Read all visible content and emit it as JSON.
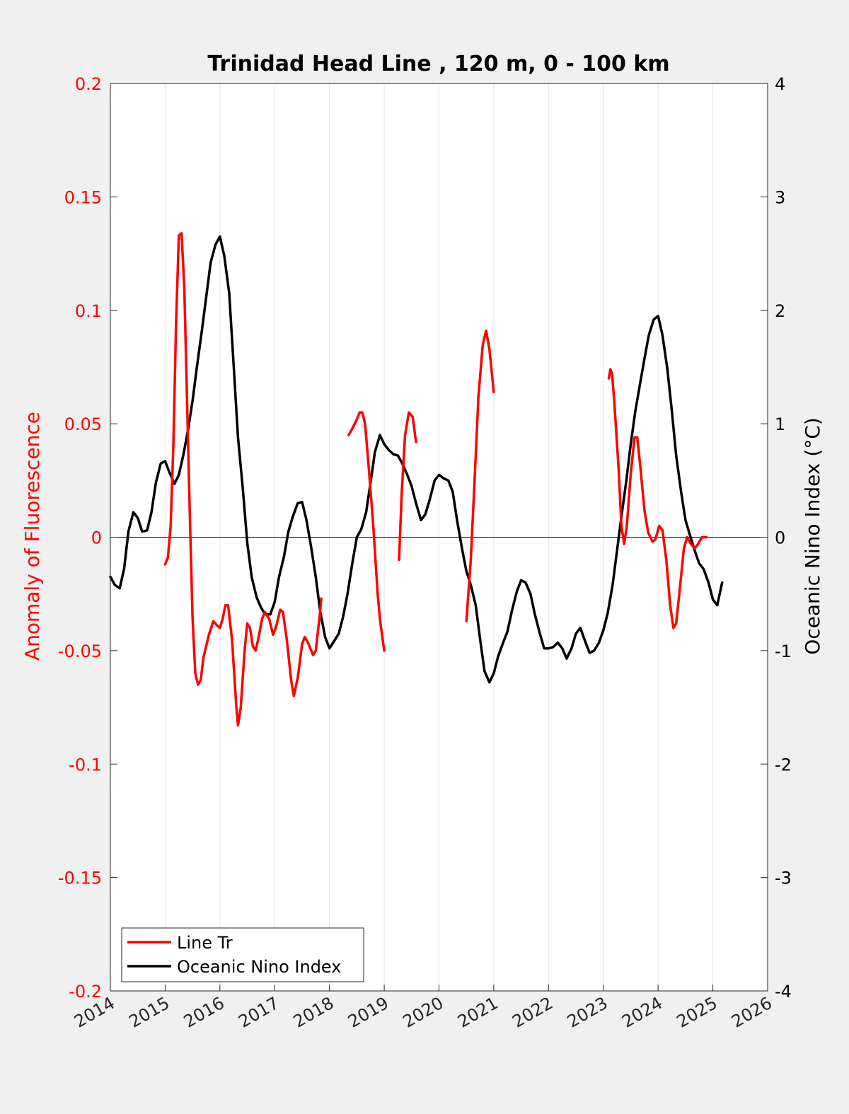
{
  "chart_data": {
    "type": "line",
    "title": "Trinidad Head Line , 120 m, 0 - 100 km",
    "xlabel": "",
    "ylabel_left": "Anomaly of Fluorescence",
    "ylabel_right": "Oceanic Nino Index (°C)",
    "xlim": [
      2014,
      2026
    ],
    "ylim_left": [
      -0.2,
      0.2
    ],
    "ylim_right": [
      -4,
      4
    ],
    "x_ticks": [
      "2014",
      "2015",
      "2016",
      "2017",
      "2018",
      "2019",
      "2020",
      "2021",
      "2022",
      "2023",
      "2024",
      "2025",
      "2026"
    ],
    "y_left_ticks": [
      "0.2",
      "0.15",
      "0.1",
      "0.05",
      "0",
      "-0.05",
      "-0.1",
      "-0.15",
      "-0.2"
    ],
    "y_right_ticks": [
      "4",
      "3",
      "2",
      "1",
      "0",
      "-1",
      "-2",
      "-3",
      "-4"
    ],
    "grid": "vertical",
    "zero_line": true,
    "legend_position": "bottom-left",
    "colors": {
      "line_tr": "#ff0000",
      "oni": "#000000"
    },
    "series": [
      {
        "name": "Line Tr",
        "axis": "left",
        "segments": [
          [
            [
              2015.0,
              -0.012
            ],
            [
              2015.05,
              -0.009
            ],
            [
              2015.1,
              0.005
            ],
            [
              2015.15,
              0.04
            ],
            [
              2015.2,
              0.095
            ],
            [
              2015.25,
              0.133
            ],
            [
              2015.3,
              0.134
            ],
            [
              2015.35,
              0.11
            ],
            [
              2015.4,
              0.06
            ],
            [
              2015.45,
              0.01
            ],
            [
              2015.5,
              -0.035
            ],
            [
              2015.55,
              -0.06
            ],
            [
              2015.6,
              -0.065
            ],
            [
              2015.65,
              -0.063
            ],
            [
              2015.7,
              -0.053
            ],
            [
              2015.8,
              -0.043
            ],
            [
              2015.88,
              -0.037
            ],
            [
              2015.95,
              -0.039
            ],
            [
              2016.0,
              -0.04
            ],
            [
              2016.05,
              -0.036
            ],
            [
              2016.1,
              -0.03
            ],
            [
              2016.15,
              -0.03
            ],
            [
              2016.22,
              -0.045
            ],
            [
              2016.3,
              -0.075
            ],
            [
              2016.33,
              -0.083
            ],
            [
              2016.38,
              -0.075
            ],
            [
              2016.45,
              -0.05
            ],
            [
              2016.5,
              -0.038
            ],
            [
              2016.55,
              -0.04
            ],
            [
              2016.6,
              -0.048
            ],
            [
              2016.65,
              -0.05
            ],
            [
              2016.7,
              -0.045
            ],
            [
              2016.77,
              -0.036
            ],
            [
              2016.82,
              -0.033
            ],
            [
              2016.9,
              -0.036
            ],
            [
              2016.97,
              -0.043
            ],
            [
              2017.02,
              -0.04
            ],
            [
              2017.1,
              -0.032
            ],
            [
              2017.15,
              -0.033
            ],
            [
              2017.22,
              -0.045
            ],
            [
              2017.3,
              -0.063
            ],
            [
              2017.35,
              -0.07
            ],
            [
              2017.42,
              -0.062
            ],
            [
              2017.5,
              -0.047
            ],
            [
              2017.55,
              -0.044
            ],
            [
              2017.62,
              -0.047
            ],
            [
              2017.7,
              -0.052
            ],
            [
              2017.75,
              -0.05
            ],
            [
              2017.82,
              -0.035
            ],
            [
              2017.85,
              -0.027
            ]
          ],
          [
            [
              2018.35,
              0.045
            ],
            [
              2018.42,
              0.048
            ],
            [
              2018.5,
              0.052
            ],
            [
              2018.55,
              0.055
            ],
            [
              2018.6,
              0.055
            ],
            [
              2018.65,
              0.05
            ],
            [
              2018.72,
              0.03
            ],
            [
              2018.8,
              0.005
            ],
            [
              2018.88,
              -0.025
            ],
            [
              2018.93,
              -0.038
            ],
            [
              2019.0,
              -0.05
            ]
          ],
          [
            [
              2019.27,
              -0.01
            ],
            [
              2019.32,
              0.02
            ],
            [
              2019.38,
              0.045
            ],
            [
              2019.45,
              0.055
            ],
            [
              2019.52,
              0.053
            ],
            [
              2019.58,
              0.042
            ]
          ],
          [
            [
              2020.5,
              -0.037
            ],
            [
              2020.58,
              -0.01
            ],
            [
              2020.65,
              0.025
            ],
            [
              2020.72,
              0.062
            ],
            [
              2020.8,
              0.085
            ],
            [
              2020.86,
              0.091
            ],
            [
              2020.92,
              0.083
            ],
            [
              2021.0,
              0.064
            ]
          ],
          [
            [
              2023.1,
              0.07
            ],
            [
              2023.13,
              0.074
            ],
            [
              2023.16,
              0.072
            ],
            [
              2023.2,
              0.06
            ],
            [
              2023.28,
              0.03
            ],
            [
              2023.33,
              0.005
            ],
            [
              2023.38,
              -0.003
            ],
            [
              2023.43,
              0.005
            ],
            [
              2023.5,
              0.028
            ],
            [
              2023.57,
              0.044
            ],
            [
              2023.62,
              0.044
            ],
            [
              2023.68,
              0.03
            ],
            [
              2023.75,
              0.012
            ],
            [
              2023.82,
              0.002
            ],
            [
              2023.9,
              -0.002
            ],
            [
              2023.95,
              -0.001
            ],
            [
              2024.02,
              0.005
            ],
            [
              2024.08,
              0.003
            ],
            [
              2024.15,
              -0.01
            ],
            [
              2024.22,
              -0.03
            ],
            [
              2024.28,
              -0.04
            ],
            [
              2024.33,
              -0.038
            ],
            [
              2024.4,
              -0.022
            ],
            [
              2024.47,
              -0.005
            ],
            [
              2024.53,
              0.0
            ],
            [
              2024.6,
              -0.003
            ],
            [
              2024.67,
              -0.005
            ],
            [
              2024.73,
              -0.003
            ],
            [
              2024.8,
              0.0
            ],
            [
              2024.88,
              0.0
            ]
          ]
        ]
      },
      {
        "name": "Oceanic Nino Index",
        "axis": "right",
        "segments": [
          [
            [
              2014.0,
              -0.35
            ],
            [
              2014.08,
              -0.42
            ],
            [
              2014.17,
              -0.45
            ],
            [
              2014.25,
              -0.28
            ],
            [
              2014.33,
              0.05
            ],
            [
              2014.42,
              0.22
            ],
            [
              2014.5,
              0.17
            ],
            [
              2014.58,
              0.05
            ],
            [
              2014.67,
              0.06
            ],
            [
              2014.75,
              0.22
            ],
            [
              2014.83,
              0.48
            ],
            [
              2014.92,
              0.65
            ],
            [
              2015.0,
              0.67
            ],
            [
              2015.08,
              0.57
            ],
            [
              2015.17,
              0.47
            ],
            [
              2015.25,
              0.55
            ],
            [
              2015.33,
              0.72
            ],
            [
              2015.42,
              0.95
            ],
            [
              2015.5,
              1.2
            ],
            [
              2015.58,
              1.5
            ],
            [
              2015.67,
              1.82
            ],
            [
              2015.75,
              2.12
            ],
            [
              2015.83,
              2.42
            ],
            [
              2015.92,
              2.58
            ],
            [
              2016.0,
              2.65
            ],
            [
              2016.08,
              2.48
            ],
            [
              2016.17,
              2.15
            ],
            [
              2016.25,
              1.52
            ],
            [
              2016.33,
              0.88
            ],
            [
              2016.42,
              0.42
            ],
            [
              2016.5,
              -0.05
            ],
            [
              2016.58,
              -0.35
            ],
            [
              2016.67,
              -0.53
            ],
            [
              2016.75,
              -0.62
            ],
            [
              2016.83,
              -0.68
            ],
            [
              2016.92,
              -0.68
            ],
            [
              2017.0,
              -0.57
            ],
            [
              2017.08,
              -0.35
            ],
            [
              2017.17,
              -0.17
            ],
            [
              2017.25,
              0.05
            ],
            [
              2017.33,
              0.18
            ],
            [
              2017.42,
              0.3
            ],
            [
              2017.5,
              0.31
            ],
            [
              2017.58,
              0.15
            ],
            [
              2017.67,
              -0.1
            ],
            [
              2017.75,
              -0.35
            ],
            [
              2017.83,
              -0.65
            ],
            [
              2017.92,
              -0.88
            ],
            [
              2018.0,
              -0.98
            ],
            [
              2018.08,
              -0.92
            ],
            [
              2018.17,
              -0.85
            ],
            [
              2018.25,
              -0.7
            ],
            [
              2018.33,
              -0.5
            ],
            [
              2018.42,
              -0.22
            ],
            [
              2018.5,
              0.0
            ],
            [
              2018.58,
              0.07
            ],
            [
              2018.67,
              0.22
            ],
            [
              2018.75,
              0.48
            ],
            [
              2018.83,
              0.75
            ],
            [
              2018.92,
              0.9
            ],
            [
              2019.0,
              0.82
            ],
            [
              2019.08,
              0.77
            ],
            [
              2019.17,
              0.73
            ],
            [
              2019.25,
              0.72
            ],
            [
              2019.33,
              0.65
            ],
            [
              2019.42,
              0.55
            ],
            [
              2019.5,
              0.45
            ],
            [
              2019.58,
              0.3
            ],
            [
              2019.67,
              0.15
            ],
            [
              2019.75,
              0.2
            ],
            [
              2019.83,
              0.33
            ],
            [
              2019.92,
              0.5
            ],
            [
              2020.0,
              0.55
            ],
            [
              2020.08,
              0.52
            ],
            [
              2020.17,
              0.5
            ],
            [
              2020.25,
              0.4
            ],
            [
              2020.33,
              0.15
            ],
            [
              2020.42,
              -0.1
            ],
            [
              2020.5,
              -0.3
            ],
            [
              2020.58,
              -0.42
            ],
            [
              2020.67,
              -0.6
            ],
            [
              2020.75,
              -0.9
            ],
            [
              2020.83,
              -1.18
            ],
            [
              2020.92,
              -1.28
            ],
            [
              2021.0,
              -1.2
            ],
            [
              2021.08,
              -1.05
            ],
            [
              2021.17,
              -0.93
            ],
            [
              2021.25,
              -0.83
            ],
            [
              2021.33,
              -0.65
            ],
            [
              2021.42,
              -0.48
            ],
            [
              2021.5,
              -0.38
            ],
            [
              2021.58,
              -0.4
            ],
            [
              2021.67,
              -0.5
            ],
            [
              2021.75,
              -0.68
            ],
            [
              2021.83,
              -0.83
            ],
            [
              2021.92,
              -0.98
            ],
            [
              2022.0,
              -0.98
            ],
            [
              2022.08,
              -0.97
            ],
            [
              2022.17,
              -0.93
            ],
            [
              2022.25,
              -0.98
            ],
            [
              2022.33,
              -1.07
            ],
            [
              2022.42,
              -0.98
            ],
            [
              2022.5,
              -0.85
            ],
            [
              2022.58,
              -0.8
            ],
            [
              2022.67,
              -0.92
            ],
            [
              2022.75,
              -1.02
            ],
            [
              2022.83,
              -1.0
            ],
            [
              2022.92,
              -0.93
            ],
            [
              2023.0,
              -0.82
            ],
            [
              2023.08,
              -0.67
            ],
            [
              2023.17,
              -0.42
            ],
            [
              2023.25,
              -0.12
            ],
            [
              2023.33,
              0.18
            ],
            [
              2023.42,
              0.5
            ],
            [
              2023.5,
              0.82
            ],
            [
              2023.58,
              1.1
            ],
            [
              2023.67,
              1.35
            ],
            [
              2023.75,
              1.57
            ],
            [
              2023.83,
              1.78
            ],
            [
              2023.92,
              1.92
            ],
            [
              2024.0,
              1.95
            ],
            [
              2024.08,
              1.78
            ],
            [
              2024.17,
              1.48
            ],
            [
              2024.25,
              1.12
            ],
            [
              2024.33,
              0.72
            ],
            [
              2024.42,
              0.4
            ],
            [
              2024.5,
              0.15
            ],
            [
              2024.58,
              0.02
            ],
            [
              2024.67,
              -0.12
            ],
            [
              2024.75,
              -0.23
            ],
            [
              2024.83,
              -0.28
            ],
            [
              2024.92,
              -0.4
            ],
            [
              2025.0,
              -0.55
            ],
            [
              2025.08,
              -0.6
            ],
            [
              2025.17,
              -0.4
            ]
          ]
        ]
      }
    ]
  },
  "legend": {
    "entries": [
      "Line Tr",
      "Oceanic Nino Index"
    ]
  }
}
